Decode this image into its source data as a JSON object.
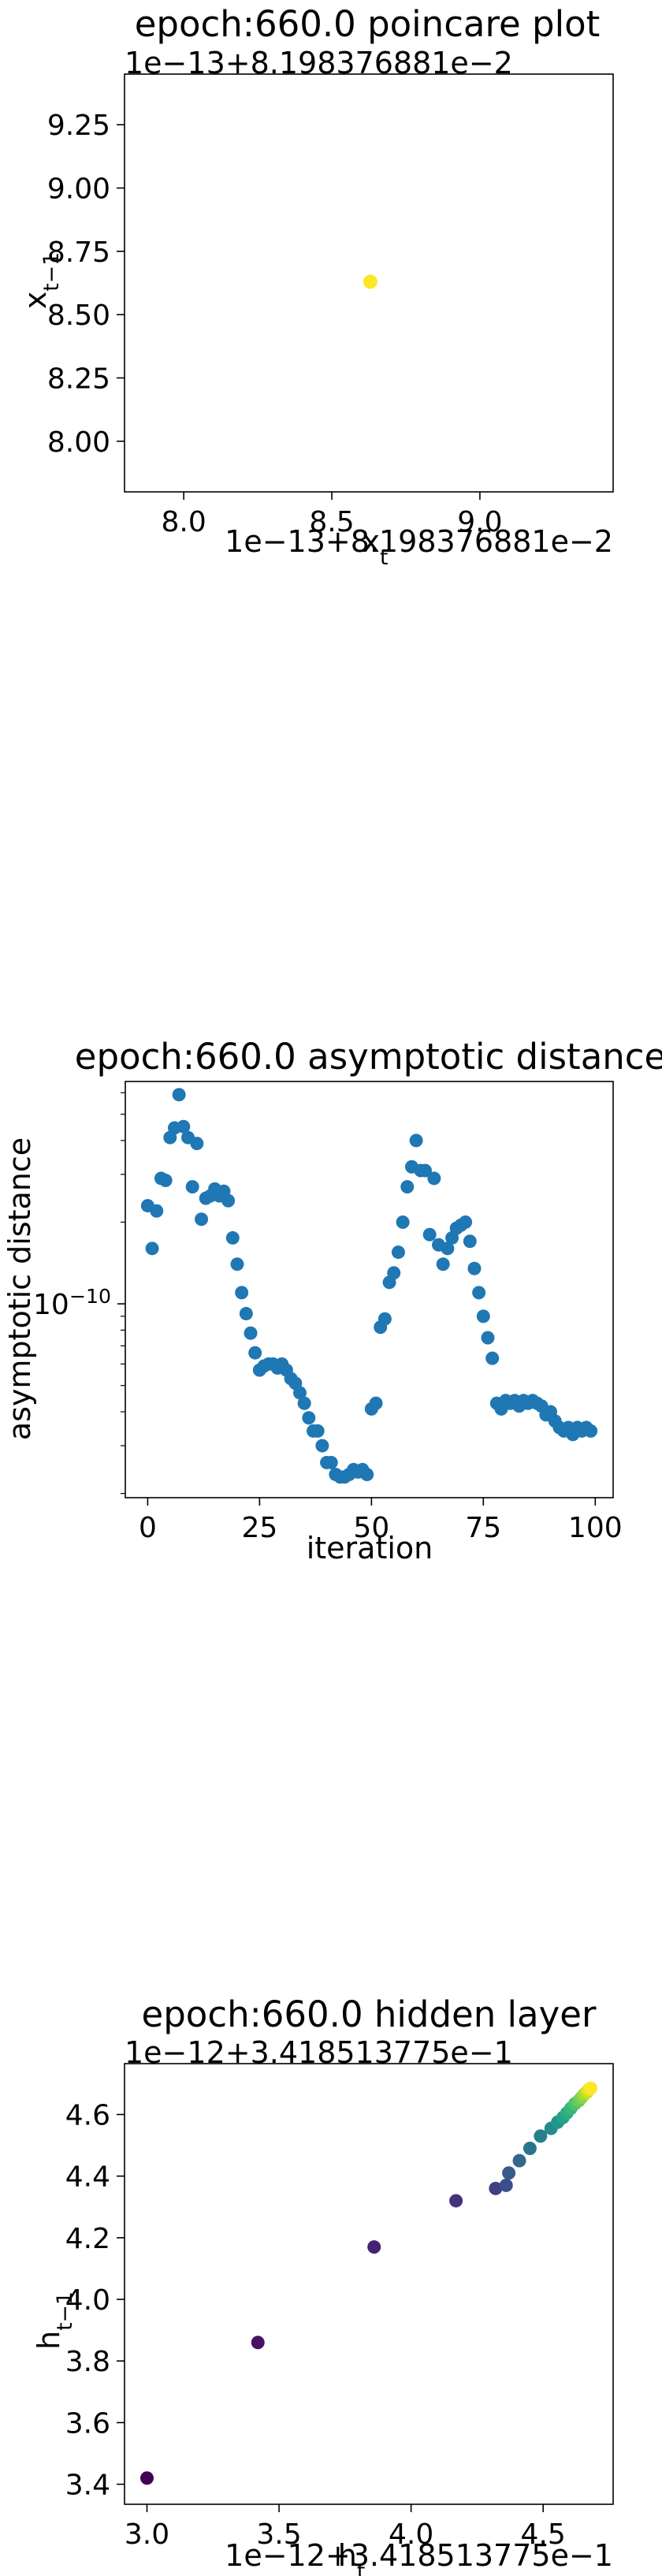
{
  "chart_data": [
    {
      "type": "scatter",
      "title": "epoch:660.0 poincare plot",
      "xlabel": "x_t",
      "ylabel": "x_{t−1}",
      "x_offset_text": "1e−13+8.198376881e−2",
      "y_offset_text": "1e−13+8.198376881e−2",
      "xlim": [
        7.8,
        9.45
      ],
      "ylim": [
        7.8,
        9.45
      ],
      "x_ticks": [
        8.0,
        8.5,
        9.0
      ],
      "x_tick_labels": [
        "8.0",
        "8.5",
        "9.0"
      ],
      "y_ticks": [
        8.0,
        8.25,
        8.5,
        8.75,
        9.0,
        9.25
      ],
      "y_tick_labels": [
        "8.00",
        "8.25",
        "8.50",
        "8.75",
        "9.00",
        "9.25"
      ],
      "grid": false,
      "points": [
        {
          "x": 8.63,
          "y": 8.63
        }
      ],
      "marker_color": "#fde725"
    },
    {
      "type": "scatter",
      "title": "epoch:660.0 asymptotic distance",
      "xlabel": "iteration",
      "ylabel": "asymptotic distance",
      "y_scale": "log",
      "xlim": [
        -5,
        104
      ],
      "ylim": [
        1.93e-11,
        6.6e-10
      ],
      "x_ticks": [
        0,
        25,
        50,
        75,
        100
      ],
      "x_tick_labels": [
        "0",
        "25",
        "50",
        "75",
        "100"
      ],
      "y_ticks": [
        1e-10
      ],
      "y_tick_labels": [
        "10^{−10}"
      ],
      "grid": false,
      "marker_color": "#1f77b4",
      "x": [
        0,
        1,
        2,
        3,
        4,
        5,
        6,
        7,
        8,
        9,
        10,
        11,
        12,
        13,
        14,
        15,
        16,
        17,
        18,
        19,
        20,
        21,
        22,
        23,
        24,
        25,
        26,
        27,
        28,
        29,
        30,
        31,
        32,
        33,
        34,
        35,
        36,
        37,
        38,
        39,
        40,
        41,
        42,
        43,
        44,
        45,
        46,
        47,
        48,
        49,
        50,
        51,
        52,
        53,
        54,
        55,
        56,
        57,
        58,
        59,
        60,
        61,
        62,
        63,
        64,
        65,
        66,
        67,
        68,
        69,
        70,
        71,
        72,
        73,
        74,
        75,
        76,
        77,
        78,
        79,
        80,
        81,
        82,
        83,
        84,
        85,
        86,
        87,
        88,
        89,
        90,
        91,
        92,
        93,
        94,
        95,
        96,
        97,
        98,
        99
      ],
      "y": [
        2.3e-10,
        1.6e-10,
        2.2e-10,
        2.9e-10,
        2.85e-10,
        4.1e-10,
        4.45e-10,
        5.9e-10,
        4.5e-10,
        4.1e-10,
        2.7e-10,
        3.9e-10,
        2.05e-10,
        2.45e-10,
        2.5e-10,
        2.65e-10,
        2.5e-10,
        2.6e-10,
        2.4e-10,
        1.75e-10,
        1.4e-10,
        1.1e-10,
        9.2e-11,
        7.8e-11,
        6.6e-11,
        5.7e-11,
        5.9e-11,
        6e-11,
        6e-11,
        5.8e-11,
        6e-11,
        5.7e-11,
        5.3e-11,
        5.1e-11,
        4.7e-11,
        4.3e-11,
        3.8e-11,
        3.4e-11,
        3.4e-11,
        3e-11,
        2.6e-11,
        2.6e-11,
        2.35e-11,
        2.3e-11,
        2.3e-11,
        2.35e-11,
        2.45e-11,
        2.4e-11,
        2.45e-11,
        2.35e-11,
        4.1e-11,
        4.3e-11,
        8.2e-11,
        8.8e-11,
        1.2e-10,
        1.3e-10,
        1.55e-10,
        2e-10,
        2.7e-10,
        3.2e-10,
        4e-10,
        3.1e-10,
        3.1e-10,
        1.8e-10,
        2.9e-10,
        1.65e-10,
        1.4e-10,
        1.6e-10,
        1.75e-10,
        1.9e-10,
        1.95e-10,
        2e-10,
        1.7e-10,
        1.35e-10,
        1.1e-10,
        9e-11,
        7.5e-11,
        6.3e-11,
        4.3e-11,
        4.1e-11,
        4.4e-11,
        4.3e-11,
        4.4e-11,
        4.2e-11,
        4.4e-11,
        4.3e-11,
        4.4e-11,
        4.3e-11,
        4.2e-11,
        3.9e-11,
        4e-11,
        3.7e-11,
        3.5e-11,
        3.4e-11,
        3.5e-11,
        3.3e-11,
        3.5e-11,
        3.4e-11,
        3.5e-11,
        3.4e-11
      ]
    },
    {
      "type": "scatter",
      "title": "epoch:660.0 hidden layer",
      "xlabel": "h_t",
      "ylabel": "h_{t−1}",
      "x_offset_text": "1e−12+3.418513775e−1",
      "y_offset_text": "1e−12+3.418513775e−1",
      "xlim": [
        2.915,
        4.765
      ],
      "ylim": [
        3.335,
        4.765
      ],
      "x_ticks": [
        3.0,
        3.5,
        4.0,
        4.5
      ],
      "x_tick_labels": [
        "3.0",
        "3.5",
        "4.0",
        "4.5"
      ],
      "y_ticks": [
        3.4,
        3.6,
        3.8,
        4.0,
        4.2,
        4.4,
        4.6
      ],
      "y_tick_labels": [
        "3.4",
        "3.6",
        "3.8",
        "4.0",
        "4.2",
        "4.4",
        "4.6"
      ],
      "grid": false,
      "colormap": "viridis",
      "x": [
        3.0,
        3.42,
        3.86,
        4.17,
        4.32,
        4.36,
        4.37,
        4.41,
        4.45,
        4.49,
        4.53,
        4.555,
        4.575,
        4.59,
        4.605,
        4.62,
        4.635,
        4.645,
        4.655,
        4.665,
        4.672,
        4.68
      ],
      "y": [
        3.42,
        3.86,
        4.17,
        4.32,
        4.36,
        4.37,
        4.41,
        4.45,
        4.49,
        4.53,
        4.555,
        4.575,
        4.59,
        4.605,
        4.62,
        4.635,
        4.645,
        4.655,
        4.665,
        4.672,
        4.68,
        4.685
      ]
    }
  ]
}
